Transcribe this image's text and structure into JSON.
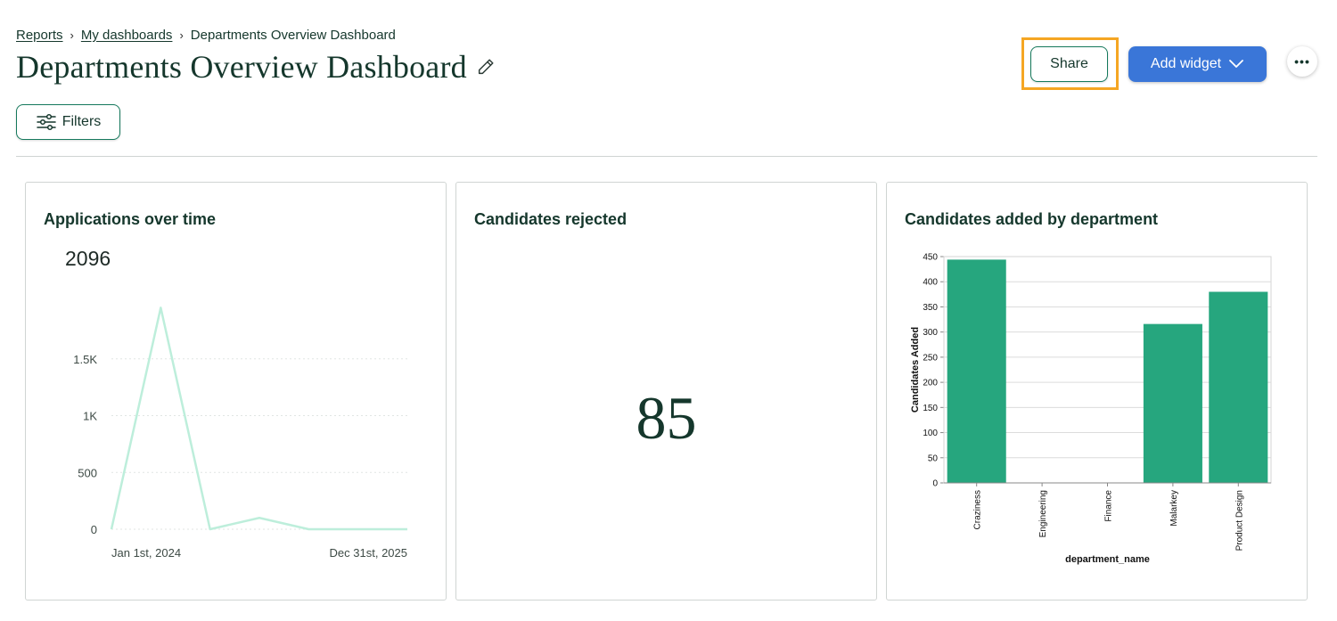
{
  "breadcrumb": {
    "items": [
      "Reports",
      "My dashboards"
    ],
    "separator": "›",
    "current": "Departments Overview Dashboard"
  },
  "header": {
    "title": "Departments Overview Dashboard",
    "edit_icon": "pencil-icon",
    "share_label": "Share",
    "add_widget_label": "Add widget",
    "add_widget_icon": "chevron-down-icon",
    "more_label": "•••"
  },
  "toolbar": {
    "filters_label": "Filters",
    "filters_icon": "sliders-icon"
  },
  "colors": {
    "brand_dark": "#15372c",
    "primary_blue": "#3a76d8",
    "highlight": "#f5a623",
    "bar_green": "#26a67e",
    "line_mint": "#bdeedb"
  },
  "widgets": {
    "applications": {
      "title": "Applications over time",
      "total": "2096",
      "y_ticks": [
        "1.5K",
        "1K",
        "500",
        "0"
      ],
      "x_start": "Jan 1st, 2024",
      "x_end": "Dec 31st, 2025"
    },
    "rejected": {
      "title": "Candidates rejected",
      "value": "85"
    },
    "by_department": {
      "title": "Candidates added by department"
    }
  },
  "chart_data": [
    {
      "type": "line",
      "title": "Applications over time",
      "x": [
        "Jan 1st, 2024",
        "",
        "",
        "",
        "",
        "",
        "Dec 31st, 2025"
      ],
      "series": [
        {
          "values": [
            0,
            1950,
            0,
            100,
            0,
            0,
            0
          ]
        }
      ],
      "ylim": [
        0,
        2000
      ],
      "yticks": [
        0,
        500,
        1000,
        1500
      ],
      "ytick_labels": [
        "0",
        "500",
        "1K",
        "1.5K"
      ],
      "grid": true
    },
    {
      "type": "bar",
      "title": "Candidates added by department",
      "xlabel": "department_name",
      "ylabel": "Candidates Added",
      "categories": [
        "Craziness",
        "Engineering",
        "Finance",
        "Malarkey",
        "Product Design"
      ],
      "values": [
        444,
        0,
        0,
        316,
        380
      ],
      "ylim": [
        0,
        450
      ],
      "yticks": [
        0,
        50,
        100,
        150,
        200,
        250,
        300,
        350,
        400,
        450
      ],
      "grid": true
    }
  ]
}
